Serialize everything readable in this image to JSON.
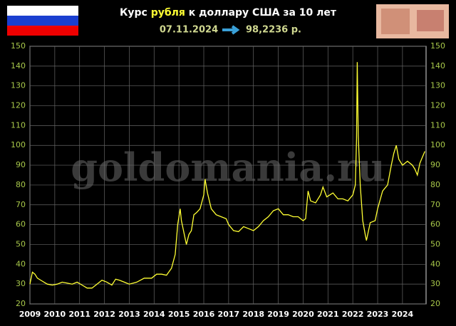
{
  "chart_data": {
    "type": "line",
    "title": [
      "Курс",
      "рубля",
      "к доллару США за 10 лет"
    ],
    "date": "07.11.2024",
    "rate": "98,2236 р.",
    "watermark": "goldomania.ru",
    "x": [
      2009.0,
      2009.05,
      2009.1,
      2009.2,
      2009.3,
      2009.5,
      2009.7,
      2009.9,
      2010.1,
      2010.3,
      2010.5,
      2010.7,
      2010.9,
      2011.1,
      2011.3,
      2011.5,
      2011.7,
      2011.9,
      2012.1,
      2012.3,
      2012.45,
      2012.6,
      2012.8,
      2013.0,
      2013.3,
      2013.6,
      2013.9,
      2014.1,
      2014.3,
      2014.5,
      2014.7,
      2014.85,
      2014.95,
      2015.05,
      2015.1,
      2015.2,
      2015.3,
      2015.4,
      2015.5,
      2015.6,
      2015.7,
      2015.85,
      2016.0,
      2016.05,
      2016.15,
      2016.3,
      2016.5,
      2016.7,
      2016.9,
      2017.0,
      2017.2,
      2017.4,
      2017.6,
      2017.8,
      2018.0,
      2018.2,
      2018.4,
      2018.6,
      2018.8,
      2019.0,
      2019.2,
      2019.4,
      2019.6,
      2019.8,
      2020.0,
      2020.1,
      2020.2,
      2020.3,
      2020.5,
      2020.7,
      2020.8,
      2020.95,
      2021.2,
      2021.4,
      2021.6,
      2021.8,
      2022.0,
      2022.1,
      2022.15,
      2022.18,
      2022.22,
      2022.3,
      2022.4,
      2022.5,
      2022.55,
      2022.7,
      2022.9,
      2023.0,
      2023.2,
      2023.4,
      2023.55,
      2023.65,
      2023.75,
      2023.85,
      2024.0,
      2024.2,
      2024.4,
      2024.5,
      2024.6,
      2024.7,
      2024.8,
      2024.9
    ],
    "series": [
      {
        "color": "#ffff33",
        "values": [
          30,
          33,
          36,
          35,
          33,
          31.5,
          30,
          29.5,
          30,
          31,
          30.5,
          30,
          31,
          29.5,
          28,
          28,
          30,
          32,
          31,
          29.5,
          32.5,
          32,
          31,
          30,
          31,
          33,
          33,
          35,
          35,
          34.5,
          38,
          45,
          60,
          68,
          62,
          56,
          50,
          55,
          57,
          65,
          66,
          68,
          75,
          83,
          76,
          68,
          65,
          64,
          63,
          60,
          57,
          56.5,
          59,
          58,
          57,
          59,
          62,
          64,
          67,
          68,
          65,
          65,
          64,
          64,
          62,
          63,
          77,
          72,
          71,
          75,
          79,
          74,
          76,
          73,
          73,
          72,
          75,
          80,
          103,
          142,
          105,
          80,
          62,
          55,
          52,
          61,
          62,
          68,
          77,
          80,
          90,
          96,
          100,
          93,
          90,
          92,
          90,
          88,
          85,
          91,
          94,
          97
        ]
      }
    ],
    "xlim": [
      2009,
      2024.95
    ],
    "xticks": [
      2009,
      2010,
      2011,
      2012,
      2013,
      2014,
      2015,
      2016,
      2017,
      2018,
      2019,
      2020,
      2021,
      2022,
      2023,
      2024
    ],
    "ylim": [
      20,
      150
    ],
    "yticks": [
      20,
      30,
      40,
      50,
      60,
      70,
      80,
      90,
      100,
      110,
      120,
      130,
      140,
      150
    ],
    "grid": true
  }
}
